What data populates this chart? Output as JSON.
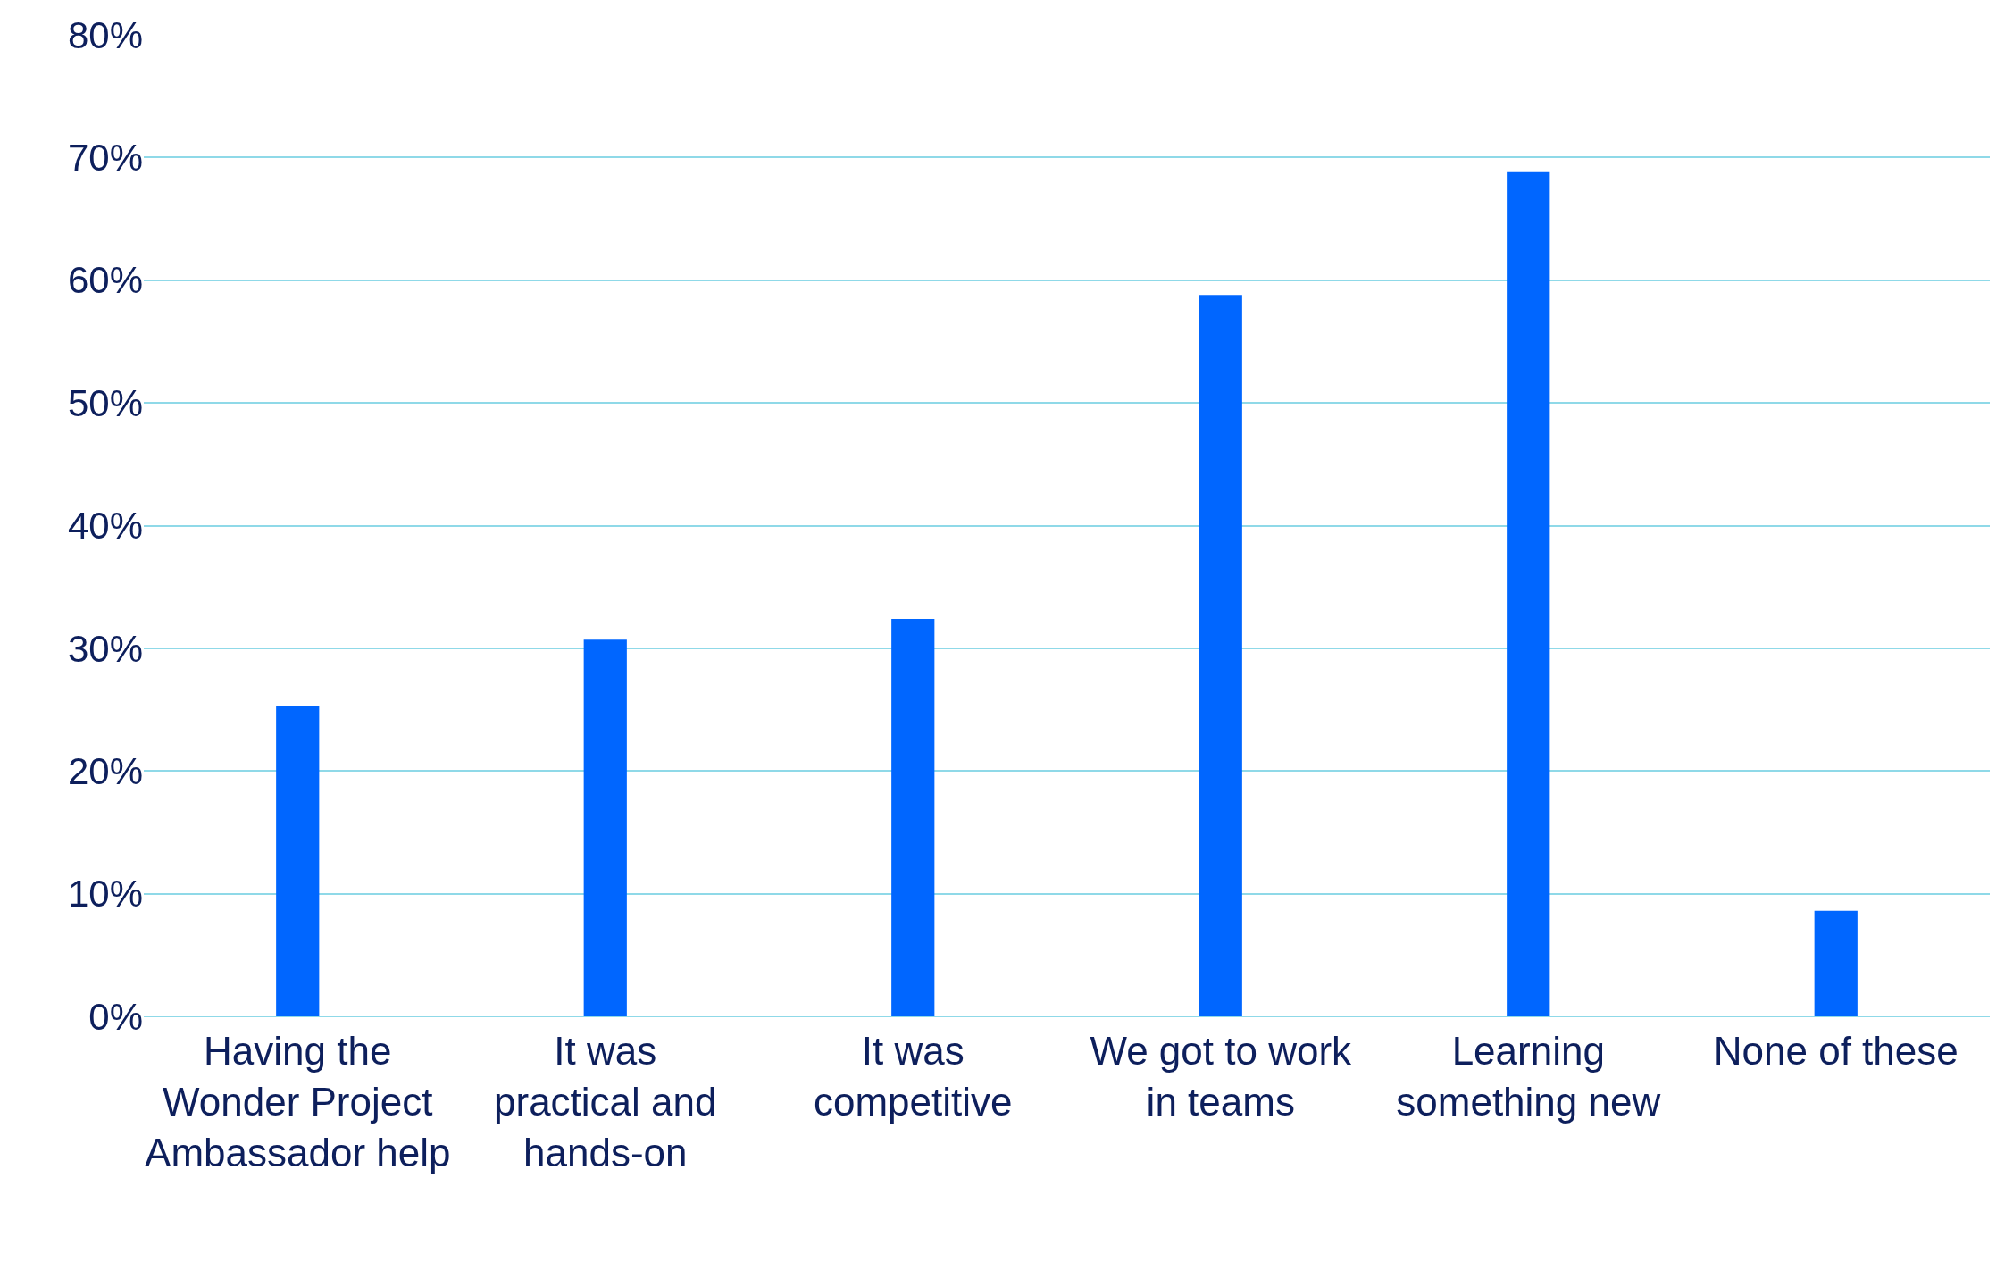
{
  "chart_data": {
    "type": "bar",
    "categories": [
      "Having the Wonder Project Ambassador help",
      "It was practical and hands-on",
      "It was competitive",
      "We got to work in teams",
      "Learning something new",
      "None of these"
    ],
    "values": [
      25.3,
      30.7,
      32.4,
      58.8,
      68.8,
      8.6
    ],
    "color": "#0066ff",
    "ylim": [
      0,
      80
    ],
    "yticks": [
      {
        "value": 0,
        "label": "0%"
      },
      {
        "value": 10,
        "label": "10%"
      },
      {
        "value": 20,
        "label": "20%"
      },
      {
        "value": 30,
        "label": "30%"
      },
      {
        "value": 40,
        "label": "40%"
      },
      {
        "value": 50,
        "label": "50%"
      },
      {
        "value": 60,
        "label": "60%"
      },
      {
        "value": 70,
        "label": "70%"
      },
      {
        "value": 80,
        "label": "80%"
      }
    ],
    "grid": "y",
    "legend": false
  }
}
